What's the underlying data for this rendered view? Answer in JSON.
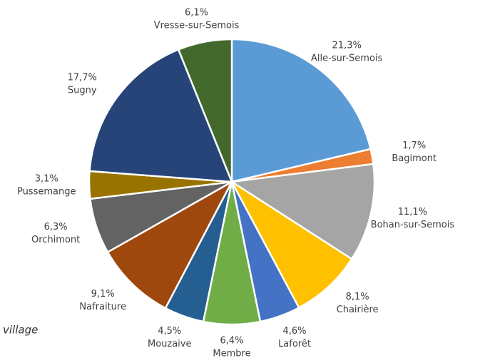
{
  "chart_data": {
    "type": "pie",
    "categories": [
      "Alle-sur-Semois",
      "Bagimont",
      "Bohan-sur-Semois",
      "Chairière",
      "Laforêt",
      "Membre",
      "Mouzaive",
      "Nafraiture",
      "Orchimont",
      "Pussemange",
      "Sugny",
      "Vresse-sur-Semois"
    ],
    "values": [
      21.3,
      1.7,
      11.1,
      8.1,
      4.6,
      6.4,
      4.5,
      9.1,
      6.3,
      3.1,
      17.7,
      6.1
    ],
    "value_labels": [
      "21,3%",
      "1,7%",
      "11,1%",
      "8,1%",
      "4,6%",
      "6,4%",
      "4,5%",
      "9,1%",
      "6,3%",
      "3,1%",
      "17,7%",
      "6,1%"
    ],
    "colors": [
      "#5b9bd5",
      "#ed7d31",
      "#a5a5a5",
      "#ffc000",
      "#4472c4",
      "#70ad47",
      "#255e91",
      "#9e480e",
      "#636363",
      "#997300",
      "#264478",
      "#43682b"
    ],
    "caption": "village"
  }
}
